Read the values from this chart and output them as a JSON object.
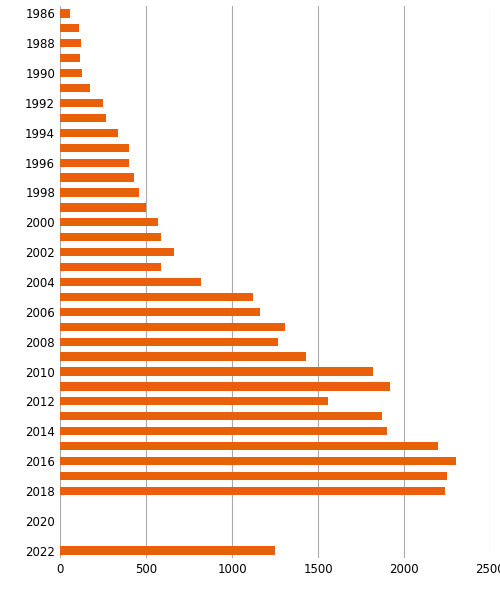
{
  "years": [
    1986,
    1987,
    1988,
    1989,
    1990,
    1991,
    1992,
    1993,
    1994,
    1995,
    1996,
    1997,
    1998,
    1999,
    2000,
    2001,
    2002,
    2003,
    2004,
    2005,
    2006,
    2007,
    2008,
    2009,
    2010,
    2011,
    2012,
    2013,
    2014,
    2015,
    2016,
    2017,
    2018,
    2019,
    2020,
    2021,
    2022
  ],
  "values": [
    60,
    110,
    120,
    115,
    130,
    175,
    250,
    270,
    340,
    400,
    400,
    430,
    460,
    500,
    570,
    590,
    660,
    590,
    820,
    1120,
    1160,
    1310,
    1270,
    1430,
    1820,
    1920,
    1560,
    1870,
    1900,
    2200,
    2300,
    2250,
    2240,
    0,
    0,
    0,
    1250
  ],
  "bar_color": "#E8600A",
  "tick_label_years": [
    1986,
    1988,
    1990,
    1992,
    1994,
    1996,
    1998,
    2000,
    2002,
    2004,
    2006,
    2008,
    2010,
    2012,
    2014,
    2016,
    2018,
    2020,
    2022
  ],
  "xlim": [
    0,
    2500
  ],
  "xticks": [
    0,
    500,
    1000,
    1500,
    2000,
    2500
  ],
  "grid_color": "#aaaaaa",
  "background_color": "#ffffff"
}
